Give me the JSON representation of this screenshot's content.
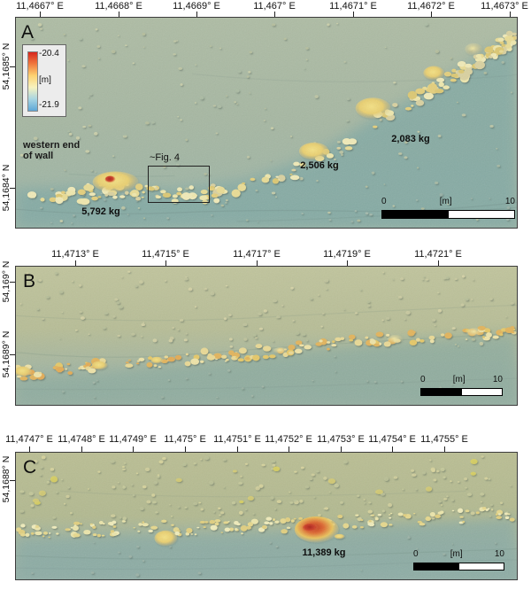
{
  "panels": [
    {
      "letter": "A",
      "top_axis_labels": [
        "11,4667° E",
        "11,4668° E",
        "11,4669° E",
        "11,467° E",
        "11,4671° E",
        "11,4672° E",
        "11,4673° E"
      ],
      "left_axis_labels": [
        "54,1685° N",
        "54,1684° N"
      ],
      "legend": {
        "max_label": "-20.4",
        "unit_label": "[m]",
        "min_label": "-21.9"
      },
      "annotations": {
        "wall_note_line1": "western end",
        "wall_note_line2": "of wall",
        "fig_ref": "~Fig. 4",
        "mass_left": "5,792 kg",
        "mass_mid": "2,506 kg",
        "mass_right": "2,083 kg"
      },
      "scalebar": {
        "start_label": "0",
        "unit_label": "[m]",
        "end_label": "10"
      }
    },
    {
      "letter": "B",
      "top_axis_labels": [
        "11,4713° E",
        "11,4715° E",
        "11,4717° E",
        "11,4719° E",
        "11,4721° E"
      ],
      "left_axis_labels": [
        "54,169° N",
        "54,1689° N"
      ],
      "scalebar": {
        "start_label": "0",
        "unit_label": "[m]",
        "end_label": "10"
      }
    },
    {
      "letter": "C",
      "top_axis_labels": [
        "11,4747° E",
        "11,4748° E",
        "11,4749° E",
        "11,475° E",
        "11,4751° E",
        "11,4752° E",
        "11,4753° E",
        "11,4754° E",
        "11,4755° E"
      ],
      "left_axis_labels": [
        "54,1688° N"
      ],
      "annotations": {
        "mass": "11,389 kg"
      },
      "scalebar": {
        "start_label": "0",
        "unit_label": "[m]",
        "end_label": "10"
      }
    }
  ],
  "colors": {
    "colorbar_gradient": [
      "#d7261d",
      "#f0793f",
      "#fdd271",
      "#f7f2bf",
      "#a8d5e2",
      "#5ea7d8"
    ],
    "map_shallow_tone": "#b9bd92",
    "map_deep_tone": "#8caba4",
    "rubble_tone": "#e8d27a",
    "hotspot_tone": "#c23522",
    "scalebar_black": "#000000"
  }
}
